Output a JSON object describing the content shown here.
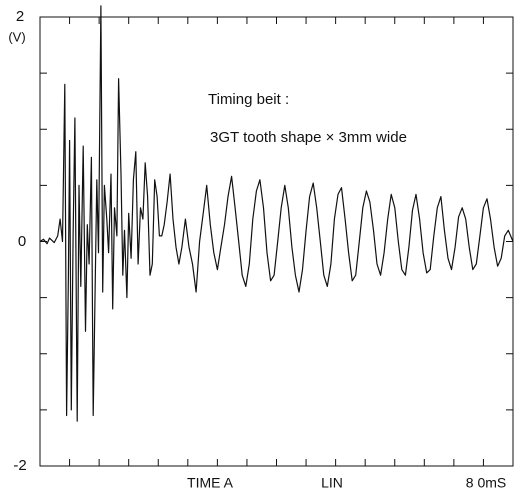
{
  "chart_data": {
    "type": "line",
    "title": "",
    "ylabel": "(V)",
    "ylim": [
      -2,
      2
    ],
    "y_ticks_labeled": [
      "2",
      "0",
      "-2"
    ],
    "xlim": [
      0,
      80
    ],
    "x_unit": "mS",
    "x_bottom_labels": {
      "time": "TIME A",
      "scale": "LIN",
      "end": "8 0mS"
    },
    "grid": false,
    "annotation": [
      "Timing beit :",
      "3GT tooth shape × 3mm wide"
    ],
    "line_color": "#111111",
    "series": [
      {
        "x": [
          0,
          0.6,
          1.2,
          1.6,
          2.4,
          3.0,
          3.4,
          3.8,
          4.2,
          4.5,
          4.8,
          5.0,
          5.3,
          5.6,
          5.9,
          6.3,
          6.6,
          6.9,
          7.3,
          7.7,
          8.0,
          8.3,
          8.7,
          9.0,
          9.3,
          9.6,
          9.9,
          10.3,
          10.6,
          10.9,
          11.3,
          11.6,
          12.0,
          12.3,
          12.6,
          13.0,
          13.3,
          13.7,
          14.0,
          14.3,
          14.7,
          15.0,
          15.4,
          15.8,
          16.2,
          16.6,
          17.0,
          17.4,
          17.8,
          18.2,
          18.6,
          19.0,
          19.4,
          19.8,
          20.2,
          20.6,
          21.0,
          21.5,
          22.0,
          22.5,
          23.0,
          23.5,
          24.0,
          24.6,
          25.2,
          25.8,
          26.4,
          27.0,
          27.6,
          28.2,
          28.8,
          29.4,
          30.0,
          30.6,
          31.2,
          31.8,
          32.4,
          33.0,
          33.6,
          34.2,
          34.8,
          35.4,
          36.0,
          36.6,
          37.2,
          37.8,
          38.4,
          39.0,
          39.6,
          40.2,
          40.8,
          41.4,
          42.0,
          42.6,
          43.2,
          43.8,
          44.4,
          45.0,
          45.6,
          46.2,
          46.8,
          47.4,
          48.0,
          48.6,
          49.2,
          49.8,
          50.4,
          51.0,
          51.6,
          52.2,
          52.8,
          53.4,
          54.0,
          54.6,
          55.2,
          55.8,
          56.4,
          57.0,
          57.6,
          58.2,
          58.8,
          59.4,
          60.0,
          60.6,
          61.2,
          61.8,
          62.4,
          63.0,
          63.6,
          64.2,
          64.8,
          65.4,
          66.0,
          66.6,
          67.2,
          67.8,
          68.4,
          69.0,
          69.6,
          70.2,
          70.8,
          71.4,
          72.0,
          72.6,
          73.2,
          73.8,
          74.4,
          75.0,
          75.6,
          76.2,
          76.8,
          77.4,
          78.0,
          78.6,
          79.2,
          80.0
        ],
        "y": [
          0.0,
          0.02,
          -0.02,
          0.03,
          -0.01,
          0.05,
          0.2,
          0.0,
          1.4,
          -1.55,
          -0.3,
          0.9,
          -1.5,
          0.05,
          1.1,
          -1.6,
          0.5,
          -0.4,
          0.85,
          -0.8,
          0.15,
          -0.2,
          0.75,
          -1.55,
          -0.5,
          0.55,
          -0.1,
          2.1,
          -0.45,
          0.5,
          0.2,
          -0.1,
          0.6,
          -0.6,
          0.3,
          0.05,
          1.45,
          0.6,
          -0.3,
          0.1,
          -0.5,
          0.25,
          -0.15,
          0.55,
          0.8,
          -0.2,
          0.3,
          0.2,
          0.7,
          0.4,
          -0.3,
          -0.2,
          0.55,
          0.4,
          0.05,
          0.05,
          0.15,
          0.35,
          0.6,
          0.2,
          -0.05,
          -0.2,
          -0.05,
          0.2,
          -0.05,
          -0.2,
          -0.45,
          0.0,
          0.25,
          0.5,
          0.15,
          -0.1,
          -0.25,
          -0.05,
          0.15,
          0.4,
          0.58,
          0.3,
          0.0,
          -0.3,
          -0.4,
          -0.2,
          0.2,
          0.45,
          0.55,
          0.3,
          -0.1,
          -0.35,
          -0.3,
          0.0,
          0.3,
          0.5,
          0.3,
          -0.05,
          -0.3,
          -0.45,
          -0.25,
          0.1,
          0.4,
          0.52,
          0.3,
          0.0,
          -0.3,
          -0.4,
          -0.2,
          0.2,
          0.42,
          0.48,
          0.2,
          -0.1,
          -0.35,
          -0.3,
          0.0,
          0.3,
          0.45,
          0.35,
          0.1,
          -0.2,
          -0.3,
          -0.1,
          0.2,
          0.42,
          0.3,
          0.0,
          -0.25,
          -0.3,
          -0.05,
          0.28,
          0.42,
          0.2,
          -0.1,
          -0.28,
          -0.25,
          0.05,
          0.3,
          0.4,
          0.1,
          -0.15,
          -0.25,
          -0.05,
          0.22,
          0.3,
          0.2,
          -0.05,
          -0.25,
          -0.2,
          0.05,
          0.3,
          0.38,
          0.2,
          -0.05,
          -0.22,
          -0.15,
          0.05,
          0.1,
          0.0
        ]
      }
    ]
  }
}
